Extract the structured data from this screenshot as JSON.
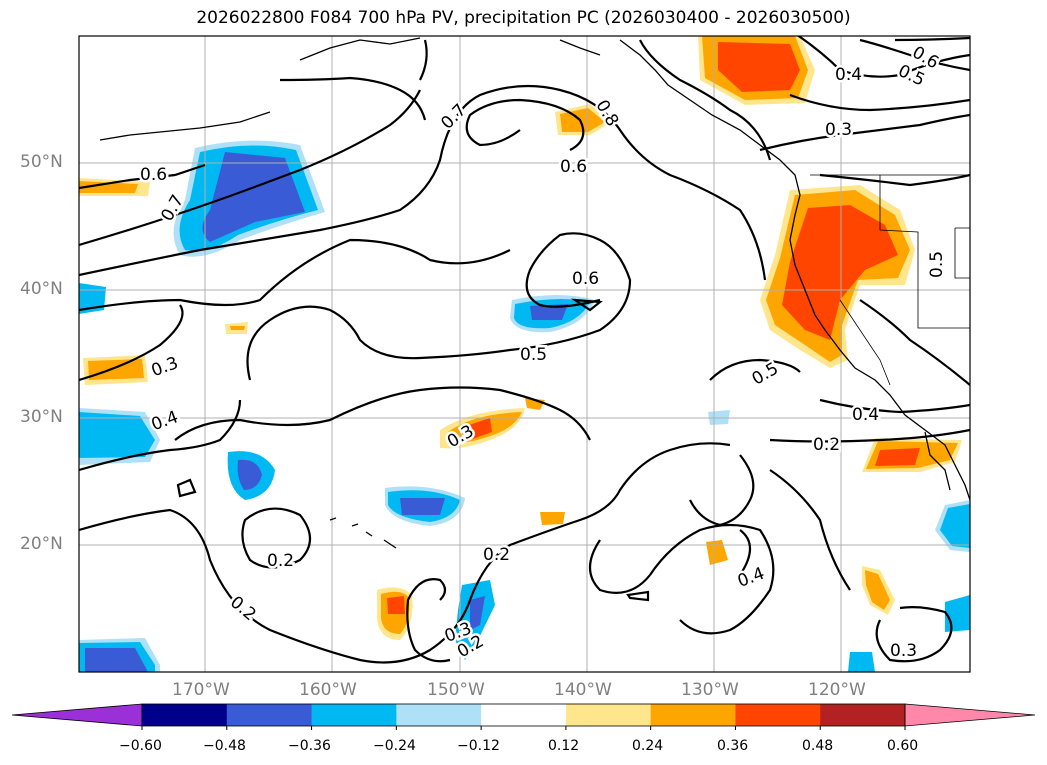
{
  "title": "2026022800 F084 700 hPa PV, precipitation PC (2026030400 - 2026030500)",
  "lat_labels": [
    "50°N",
    "40°N",
    "30°N",
    "20°N"
  ],
  "lon_labels": [
    "170°W",
    "160°W",
    "150°W",
    "140°W",
    "130°W",
    "120°W"
  ],
  "colorbar": {
    "ticks": [
      "−0.60",
      "−0.48",
      "−0.36",
      "−0.24",
      "−0.12",
      "0.12",
      "0.24",
      "0.36",
      "0.48",
      "0.60"
    ],
    "colors": [
      "#9b30d9",
      "#00008b",
      "#3a5bd6",
      "#00b9f2",
      "#aee0f8",
      "#ffffff",
      "#ffe68c",
      "#ffa500",
      "#ff4500",
      "#b22222",
      "#ff88aa"
    ]
  },
  "contour_labels": [
    "0.7",
    "0.8",
    "0.6",
    "0.6",
    "0.7",
    "0.4",
    "0.5",
    "0.6",
    "0.3",
    "0.6",
    "0.5",
    "0.3",
    "0.5",
    "0.4",
    "0.4",
    "0.3",
    "0.2",
    "0.2",
    "0.2",
    "0.4",
    "0.3",
    "0.2",
    "0.2",
    "0.3",
    "0.5"
  ]
}
